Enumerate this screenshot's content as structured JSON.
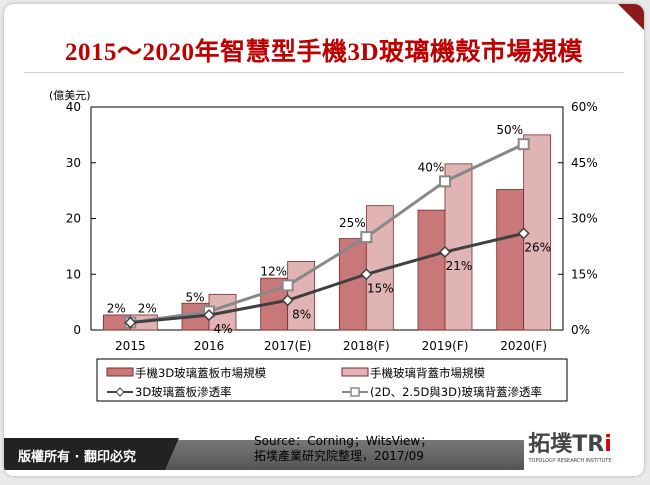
{
  "title": "2015～2020年智慧型手機3D玻璃機殼市場規模",
  "footer": {
    "copyright": "版權所有 · 翻印必究",
    "source_line1": "Source：Corning；WitsView；",
    "source_line2": "拓墣產業研究院整理，2017/09",
    "logo_text": "拓墣TRi",
    "logo_sub": "TOPOLOGY RESEARCH INSTITUTE"
  },
  "colors": {
    "title": "#c00000",
    "bar1": "#c87878",
    "bar2": "#e0b4b4",
    "line1": "#404040",
    "line2": "#888888"
  },
  "chart_data": {
    "type": "bar+line",
    "ylabel": "(億美元)",
    "ylim": [
      0,
      40
    ],
    "yticks": [
      "0",
      "10",
      "20",
      "30",
      "40"
    ],
    "y2lim": [
      0,
      60
    ],
    "y2ticks": [
      "0%",
      "15%",
      "30%",
      "45%",
      "60%"
    ],
    "categories": [
      "2015",
      "2016",
      "2017(E)",
      "2018(F)",
      "2019(F)",
      "2020(F)"
    ],
    "series": [
      {
        "name": "手機3D玻璃蓋板市場規模",
        "type": "bar",
        "axis": "left",
        "values": [
          2.7,
          4.8,
          9.3,
          16.4,
          21.5,
          25.2
        ]
      },
      {
        "name": "手機玻璃背蓋市場規模",
        "type": "bar",
        "axis": "left",
        "values": [
          2.7,
          6.4,
          12.3,
          22.3,
          29.8,
          35.0
        ]
      },
      {
        "name": "3D玻璃蓋板滲透率",
        "type": "line",
        "axis": "right",
        "marker": "diamond",
        "values": [
          2,
          4,
          8,
          15,
          21,
          26
        ],
        "labels": [
          "",
          "4%",
          "8%",
          "15%",
          "21%",
          "26%"
        ]
      },
      {
        "name": "(2D、2.5D與3D)玻璃背蓋滲透率",
        "type": "line",
        "axis": "right",
        "marker": "square",
        "values": [
          2,
          5,
          12,
          25,
          40,
          50
        ],
        "labels": [
          "2%",
          "5%",
          "12%",
          "25%",
          "40%",
          "50%"
        ]
      }
    ],
    "extra_label_2015": "2%",
    "grid": false,
    "legend": "bottom"
  }
}
